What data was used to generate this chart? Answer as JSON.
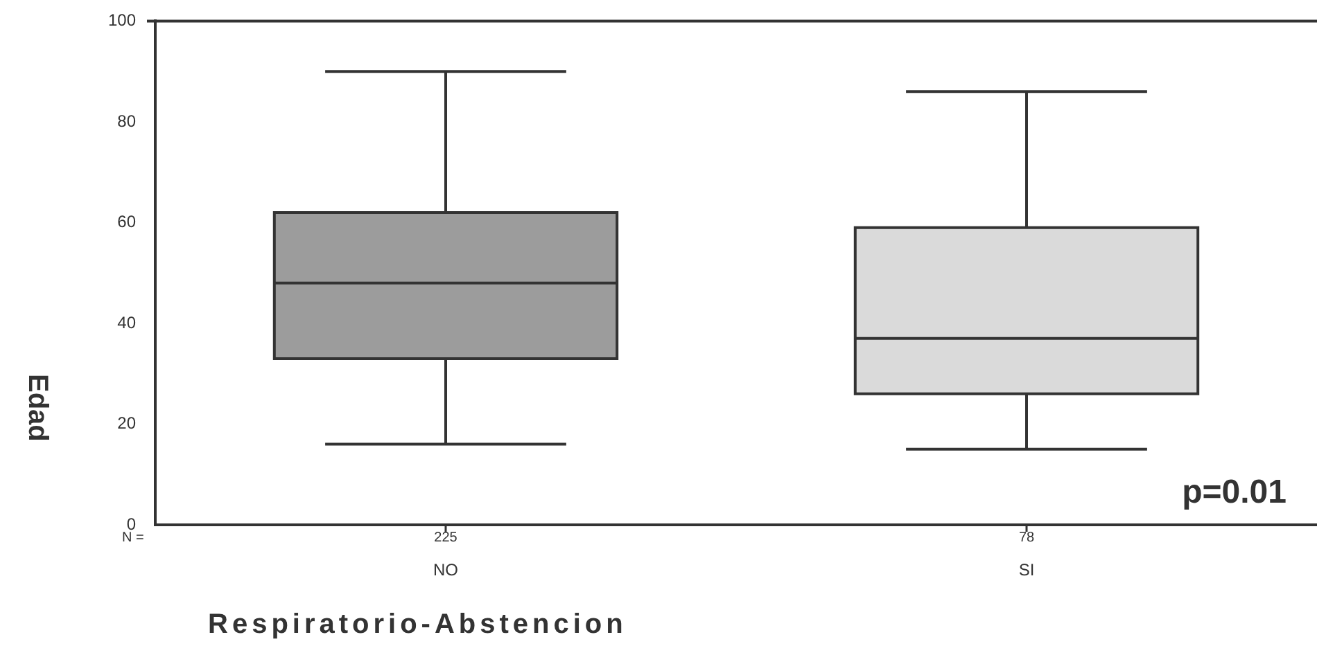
{
  "chart_data": {
    "type": "box",
    "xlabel": "Respiratorio-Abstencion",
    "ylabel": "Edad",
    "categories": [
      "NO",
      "SI"
    ],
    "boxes": [
      {
        "low": 16,
        "q1": 33,
        "median": 48,
        "q3": 62,
        "high": 90
      },
      {
        "low": 15,
        "q1": 26,
        "median": 37,
        "q3": 59,
        "high": 86
      }
    ],
    "colors": [
      "#9c9c9c",
      "#dadada"
    ],
    "ylim": [
      0,
      100
    ],
    "yticks": [
      0,
      20,
      40,
      60,
      80,
      100
    ],
    "annotations": [
      "N =",
      "225",
      "78",
      "p=0.01"
    ]
  }
}
